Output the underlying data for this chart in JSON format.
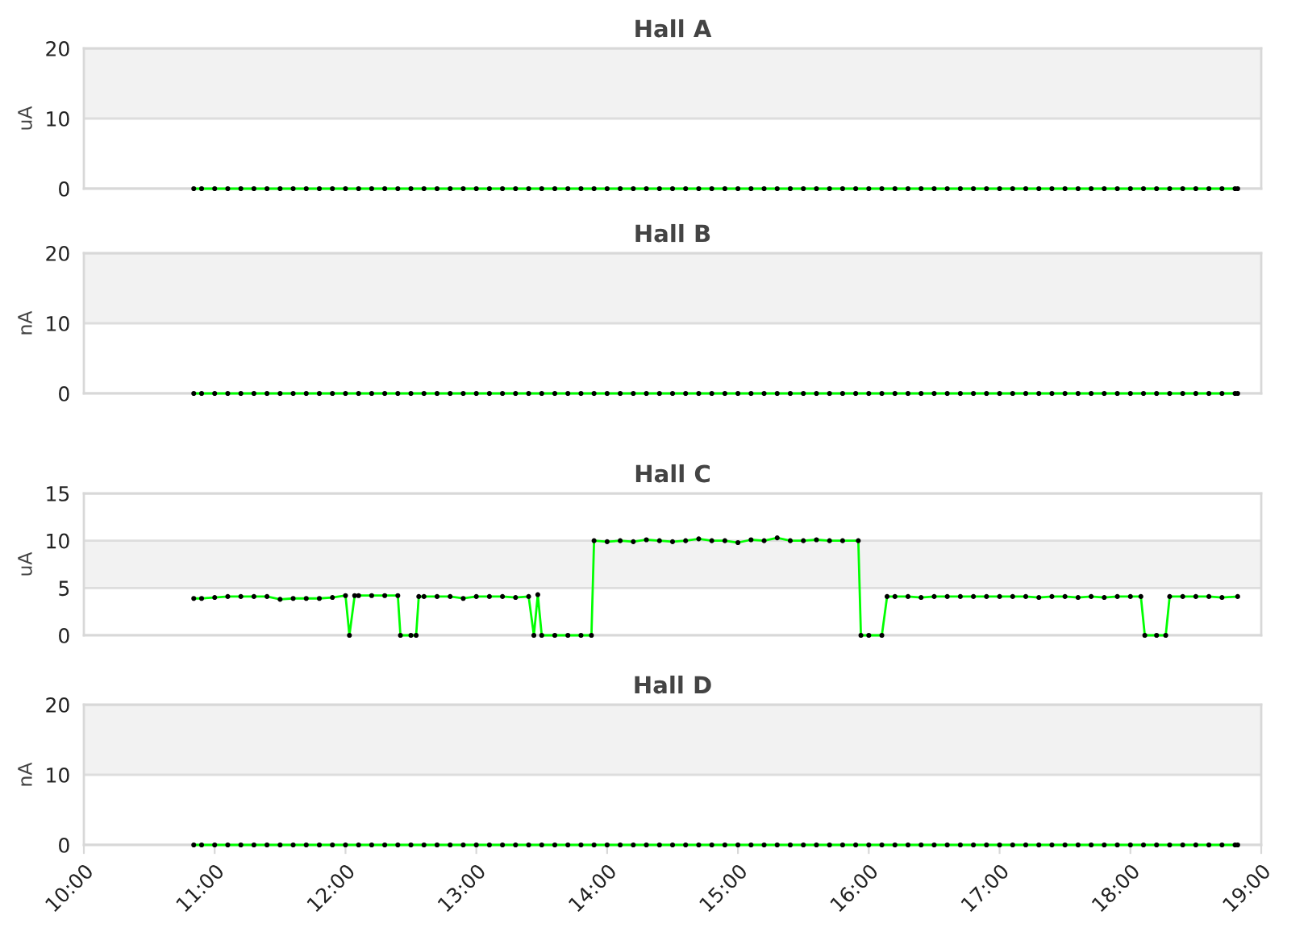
{
  "chart_data": [
    {
      "type": "line",
      "title": "Hall A",
      "ylabel": "uA",
      "grid": "y",
      "marker": "circle",
      "tick_labels": "y",
      "xlim": [
        10,
        19
      ],
      "ylim": [
        0,
        20
      ],
      "yticks": [
        0,
        10,
        20
      ],
      "bands": [
        {
          "axis": "y",
          "from": 10,
          "to": 20,
          "color": "#f2f2f2"
        }
      ],
      "x": [
        10.84,
        10.9,
        11.0,
        11.1,
        11.2,
        11.3,
        11.4,
        11.5,
        11.6,
        11.7,
        11.8,
        11.9,
        12.0,
        12.1,
        12.2,
        12.3,
        12.4,
        12.5,
        12.6,
        12.7,
        12.8,
        12.9,
        13.0,
        13.1,
        13.2,
        13.3,
        13.4,
        13.5,
        13.6,
        13.7,
        13.8,
        13.9,
        14.0,
        14.1,
        14.2,
        14.3,
        14.4,
        14.5,
        14.6,
        14.7,
        14.8,
        14.9,
        15.0,
        15.1,
        15.2,
        15.3,
        15.4,
        15.5,
        15.6,
        15.7,
        15.8,
        15.9,
        16.0,
        16.1,
        16.2,
        16.3,
        16.4,
        16.5,
        16.6,
        16.7,
        16.8,
        16.9,
        17.0,
        17.1,
        17.2,
        17.3,
        17.4,
        17.5,
        17.6,
        17.7,
        17.8,
        17.9,
        18.0,
        18.1,
        18.2,
        18.3,
        18.4,
        18.5,
        18.6,
        18.7,
        18.8,
        18.82
      ],
      "series": [
        {
          "color": "#00ff00",
          "values": [
            0,
            0,
            0,
            0,
            0,
            0,
            0,
            0,
            0,
            0,
            0,
            0,
            0,
            0,
            0,
            0,
            0,
            0,
            0,
            0,
            0,
            0,
            0,
            0,
            0,
            0,
            0,
            0,
            0,
            0,
            0,
            0,
            0,
            0,
            0,
            0,
            0,
            0,
            0,
            0,
            0,
            0,
            0,
            0,
            0,
            0,
            0,
            0,
            0,
            0,
            0,
            0,
            0,
            0,
            0,
            0,
            0,
            0,
            0,
            0,
            0,
            0,
            0,
            0,
            0,
            0,
            0,
            0,
            0,
            0,
            0,
            0,
            0,
            0,
            0,
            0,
            0,
            0,
            0,
            0,
            0,
            0
          ]
        }
      ]
    },
    {
      "type": "line",
      "title": "Hall B",
      "ylabel": "nA",
      "grid": "y",
      "marker": "circle",
      "tick_labels": "y",
      "xlim": [
        10,
        19
      ],
      "ylim": [
        0,
        20
      ],
      "yticks": [
        0,
        10,
        20
      ],
      "bands": [
        {
          "axis": "y",
          "from": 10,
          "to": 20,
          "color": "#f2f2f2"
        }
      ],
      "x": [
        10.84,
        10.9,
        11.0,
        11.1,
        11.2,
        11.3,
        11.4,
        11.5,
        11.6,
        11.7,
        11.8,
        11.9,
        12.0,
        12.1,
        12.2,
        12.3,
        12.4,
        12.5,
        12.6,
        12.7,
        12.8,
        12.9,
        13.0,
        13.1,
        13.2,
        13.3,
        13.4,
        13.5,
        13.6,
        13.7,
        13.8,
        13.9,
        14.0,
        14.1,
        14.2,
        14.3,
        14.4,
        14.5,
        14.6,
        14.7,
        14.8,
        14.9,
        15.0,
        15.1,
        15.2,
        15.3,
        15.4,
        15.5,
        15.6,
        15.7,
        15.8,
        15.9,
        16.0,
        16.1,
        16.2,
        16.3,
        16.4,
        16.5,
        16.6,
        16.7,
        16.8,
        16.9,
        17.0,
        17.1,
        17.2,
        17.3,
        17.4,
        17.5,
        17.6,
        17.7,
        17.8,
        17.9,
        18.0,
        18.1,
        18.2,
        18.3,
        18.4,
        18.5,
        18.6,
        18.7,
        18.8,
        18.82
      ],
      "series": [
        {
          "color": "#00ff00",
          "values": [
            0,
            0,
            0,
            0,
            0,
            0,
            0,
            0,
            0,
            0,
            0,
            0,
            0,
            0,
            0,
            0,
            0,
            0,
            0,
            0,
            0,
            0,
            0,
            0,
            0,
            0,
            0,
            0,
            0,
            0,
            0,
            0,
            0,
            0,
            0,
            0,
            0,
            0,
            0,
            0,
            0,
            0,
            0,
            0,
            0,
            0,
            0,
            0,
            0,
            0,
            0,
            0,
            0,
            0,
            0,
            0,
            0,
            0,
            0,
            0,
            0,
            0,
            0,
            0,
            0,
            0,
            0,
            0,
            0,
            0,
            0,
            0,
            0,
            0,
            0,
            0,
            0,
            0,
            0,
            0,
            0,
            0
          ]
        }
      ]
    },
    {
      "type": "line",
      "title": "Hall C",
      "ylabel": "uA",
      "grid": "y",
      "marker": "circle",
      "tick_labels": "y",
      "xlim": [
        10,
        19
      ],
      "ylim": [
        0,
        15
      ],
      "yticks": [
        0,
        5,
        10,
        15
      ],
      "bands": [
        {
          "axis": "y",
          "from": 5,
          "to": 10,
          "color": "#f2f2f2"
        }
      ],
      "x": [
        10.84,
        10.9,
        11.0,
        11.1,
        11.2,
        11.3,
        11.4,
        11.5,
        11.6,
        11.7,
        11.8,
        11.9,
        12.0,
        12.03,
        12.07,
        12.1,
        12.2,
        12.3,
        12.4,
        12.42,
        12.5,
        12.54,
        12.56,
        12.6,
        12.7,
        12.8,
        12.9,
        13.0,
        13.1,
        13.2,
        13.3,
        13.4,
        13.44,
        13.47,
        13.5,
        13.6,
        13.7,
        13.8,
        13.88,
        13.9,
        14.0,
        14.1,
        14.2,
        14.3,
        14.4,
        14.5,
        14.6,
        14.7,
        14.8,
        14.9,
        15.0,
        15.1,
        15.2,
        15.3,
        15.4,
        15.5,
        15.6,
        15.7,
        15.8,
        15.92,
        15.94,
        16.0,
        16.1,
        16.14,
        16.2,
        16.3,
        16.4,
        16.5,
        16.6,
        16.7,
        16.8,
        16.9,
        17.0,
        17.1,
        17.2,
        17.3,
        17.4,
        17.5,
        17.6,
        17.7,
        17.8,
        17.9,
        18.0,
        18.08,
        18.11,
        18.2,
        18.27,
        18.3,
        18.4,
        18.5,
        18.6,
        18.7,
        18.82
      ],
      "series": [
        {
          "color": "#00ff00",
          "values": [
            3.9,
            3.9,
            4.0,
            4.1,
            4.1,
            4.1,
            4.1,
            3.8,
            3.9,
            3.9,
            3.9,
            4.0,
            4.2,
            0,
            4.2,
            4.2,
            4.2,
            4.2,
            4.2,
            0,
            0,
            0,
            4.1,
            4.1,
            4.1,
            4.1,
            3.9,
            4.1,
            4.1,
            4.1,
            4.0,
            4.1,
            0,
            4.3,
            0,
            0,
            0,
            0,
            0,
            10.0,
            9.9,
            10.0,
            9.9,
            10.1,
            10.0,
            9.9,
            10.0,
            10.2,
            10.0,
            10.0,
            9.8,
            10.1,
            10.0,
            10.3,
            10.0,
            10.0,
            10.1,
            10.0,
            10.0,
            10.0,
            0,
            0,
            0,
            4.1,
            4.1,
            4.1,
            4.0,
            4.1,
            4.1,
            4.1,
            4.1,
            4.1,
            4.1,
            4.1,
            4.1,
            4.0,
            4.1,
            4.1,
            4.0,
            4.1,
            4.0,
            4.1,
            4.1,
            4.1,
            0,
            0,
            0,
            4.1,
            4.1,
            4.1,
            4.1,
            4.0,
            4.1
          ]
        }
      ]
    },
    {
      "type": "line",
      "title": "Hall D",
      "ylabel": "nA",
      "grid": "y",
      "marker": "circle",
      "xlim": [
        10,
        19
      ],
      "xticks": [
        {
          "value": 10,
          "label": "10:00"
        },
        {
          "value": 11,
          "label": "11:00"
        },
        {
          "value": 12,
          "label": "12:00"
        },
        {
          "value": 13,
          "label": "13:00"
        },
        {
          "value": 14,
          "label": "14:00"
        },
        {
          "value": 15,
          "label": "15:00"
        },
        {
          "value": 16,
          "label": "16:00"
        },
        {
          "value": 17,
          "label": "17:00"
        },
        {
          "value": 18,
          "label": "18:00"
        },
        {
          "value": 19,
          "label": "19:00"
        }
      ],
      "ylim": [
        0,
        20
      ],
      "yticks": [
        0,
        10,
        20
      ],
      "bands": [
        {
          "axis": "y",
          "from": 10,
          "to": 20,
          "color": "#f2f2f2"
        }
      ],
      "x": [
        10.84,
        10.9,
        11.0,
        11.1,
        11.2,
        11.3,
        11.4,
        11.5,
        11.6,
        11.7,
        11.8,
        11.9,
        12.0,
        12.1,
        12.2,
        12.3,
        12.4,
        12.5,
        12.6,
        12.7,
        12.8,
        12.9,
        13.0,
        13.1,
        13.2,
        13.3,
        13.4,
        13.5,
        13.6,
        13.7,
        13.8,
        13.9,
        14.0,
        14.1,
        14.2,
        14.3,
        14.4,
        14.5,
        14.6,
        14.7,
        14.8,
        14.9,
        15.0,
        15.1,
        15.2,
        15.3,
        15.4,
        15.5,
        15.6,
        15.7,
        15.8,
        15.9,
        16.0,
        16.1,
        16.2,
        16.3,
        16.4,
        16.5,
        16.6,
        16.7,
        16.8,
        16.9,
        17.0,
        17.1,
        17.2,
        17.3,
        17.4,
        17.5,
        17.6,
        17.7,
        17.8,
        17.9,
        18.0,
        18.1,
        18.2,
        18.3,
        18.4,
        18.5,
        18.6,
        18.7,
        18.8,
        18.82
      ],
      "series": [
        {
          "color": "#00ff00",
          "values": [
            0,
            0,
            0,
            0,
            0,
            0,
            0,
            0,
            0,
            0,
            0,
            0,
            0,
            0,
            0,
            0,
            0,
            0,
            0,
            0,
            0,
            0,
            0,
            0,
            0,
            0,
            0,
            0,
            0,
            0,
            0,
            0,
            0,
            0,
            0,
            0,
            0,
            0,
            0,
            0,
            0,
            0,
            0,
            0,
            0,
            0,
            0,
            0,
            0,
            0,
            0,
            0,
            0,
            0,
            0,
            0,
            0,
            0,
            0,
            0,
            0,
            0,
            0,
            0,
            0,
            0,
            0,
            0,
            0,
            0,
            0,
            0,
            0,
            0,
            0,
            0,
            0,
            0,
            0,
            0,
            0,
            0
          ]
        }
      ]
    }
  ]
}
